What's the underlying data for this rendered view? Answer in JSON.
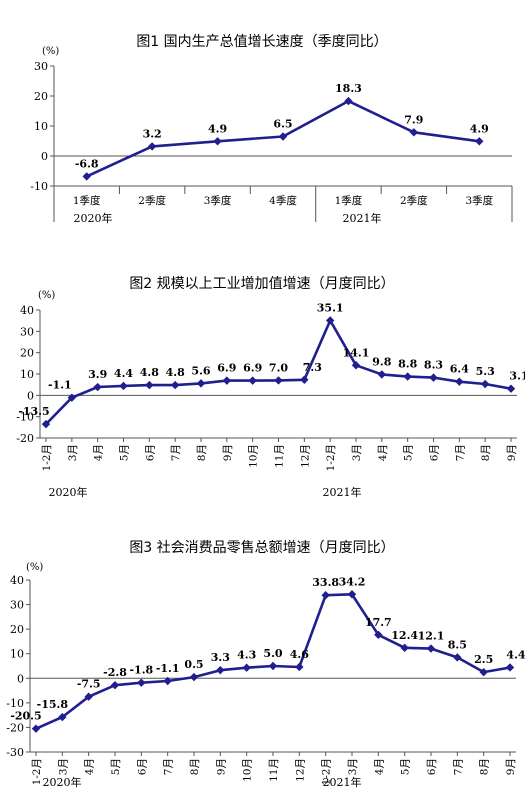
{
  "chart_data": [
    {
      "type": "line",
      "title": "图1   国内生产总值增长速度（季度同比）",
      "unit": "(%)",
      "categories": [
        "1季度",
        "2季度",
        "3季度",
        "4季度",
        "1季度",
        "2季度",
        "3季度"
      ],
      "year_labels": [
        "2020年",
        "2021年"
      ],
      "values": [
        -6.8,
        3.2,
        4.9,
        6.5,
        18.3,
        7.9,
        4.9
      ],
      "value_labels": [
        "-6.8",
        "3.2",
        "4.9",
        "6.5",
        "18.3",
        "7.9",
        "4.9"
      ],
      "yticks": [
        "30",
        "20",
        "10",
        "0",
        "-10"
      ],
      "ylim": [
        -10,
        30
      ],
      "color": "#1f1f8f",
      "grid": false
    },
    {
      "type": "line",
      "title": "图2   规模以上工业增加值增速（月度同比）",
      "unit": "(%)",
      "categories": [
        "1-2月",
        "3月",
        "4月",
        "5月",
        "6月",
        "7月",
        "8月",
        "9月",
        "10月",
        "11月",
        "12月",
        "1-2月",
        "3月",
        "4月",
        "5月",
        "6月",
        "7月",
        "8月",
        "9月"
      ],
      "year_labels": [
        "2020年",
        "2021年"
      ],
      "values": [
        -13.5,
        -1.1,
        3.9,
        4.4,
        4.8,
        4.8,
        5.6,
        6.9,
        6.9,
        7.0,
        7.3,
        35.1,
        14.1,
        9.8,
        8.8,
        8.3,
        6.4,
        5.3,
        3.1
      ],
      "value_labels": [
        "-13.5",
        "-1.1",
        "3.9",
        "4.4",
        "4.8",
        "4.8",
        "5.6",
        "6.9",
        "6.9",
        "7.0",
        "7.3",
        "35.1",
        "14.1",
        "9.8",
        "8.8",
        "8.3",
        "6.4",
        "5.3",
        "3.1"
      ],
      "yticks": [
        "40",
        "30",
        "20",
        "10",
        "0",
        "-10",
        "-20"
      ],
      "ylim": [
        -20,
        40
      ],
      "color": "#1f1f8f",
      "grid": false
    },
    {
      "type": "line",
      "title": "图3   社会消费品零售总额增速（月度同比）",
      "unit": "(%)",
      "categories": [
        "1-2月",
        "3月",
        "4月",
        "5月",
        "6月",
        "7月",
        "8月",
        "9月",
        "10月",
        "11月",
        "12月",
        "1-2月",
        "3月",
        "4月",
        "5月",
        "6月",
        "7月",
        "8月",
        "9月"
      ],
      "year_labels": [
        "2020年",
        "2021年"
      ],
      "values": [
        -20.5,
        -15.8,
        -7.5,
        -2.8,
        -1.8,
        -1.1,
        0.5,
        3.3,
        4.3,
        5.0,
        4.6,
        33.8,
        34.2,
        17.7,
        12.4,
        12.1,
        8.5,
        2.5,
        4.4
      ],
      "value_labels": [
        "-20.5",
        "-15.8",
        "-7.5",
        "-2.8",
        "-1.8",
        "-1.1",
        "0.5",
        "3.3",
        "4.3",
        "5.0",
        "4.6",
        "33.8",
        "34.2",
        "17.7",
        "12.4",
        "12.1",
        "8.5",
        "2.5",
        "4.4"
      ],
      "yticks": [
        "40",
        "30",
        "20",
        "10",
        "0",
        "-10",
        "-20",
        "-30"
      ],
      "ylim": [
        -30,
        40
      ],
      "color": "#1f1f8f",
      "grid": false
    }
  ]
}
